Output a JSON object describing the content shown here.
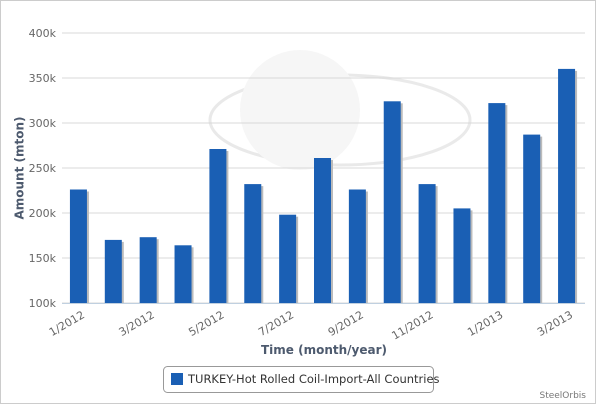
{
  "chart_data": {
    "type": "bar",
    "y_axis_title": "Amount (mton)",
    "x_axis_title": "Time (month/year)",
    "categories": [
      "1/2012",
      null,
      "3/2012",
      null,
      "5/2012",
      null,
      "7/2012",
      null,
      "9/2012",
      null,
      "11/2012",
      null,
      "1/2013",
      null,
      "3/2013"
    ],
    "series": [
      {
        "name": "TURKEY-Hot Rolled Coil-Import-All Countries",
        "color": "#1a5fb4",
        "values": [
          225000,
          169000,
          172000,
          163000,
          270000,
          231000,
          197000,
          260000,
          225000,
          323000,
          231000,
          204000,
          321000,
          286000,
          359000
        ]
      }
    ],
    "ylim": [
      100000,
      400000
    ],
    "yticks": [
      {
        "value": 100000,
        "label": "100k"
      },
      {
        "value": 150000,
        "label": "150k"
      },
      {
        "value": 200000,
        "label": "200k"
      },
      {
        "value": 250000,
        "label": "250k"
      },
      {
        "value": 300000,
        "label": "300k"
      },
      {
        "value": 350000,
        "label": "350k"
      },
      {
        "value": 400000,
        "label": "400k"
      }
    ],
    "grid": true,
    "credit": "SteelOrbis"
  }
}
